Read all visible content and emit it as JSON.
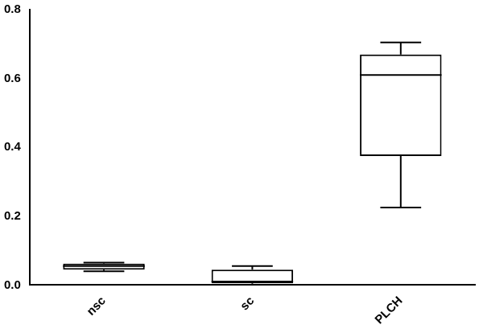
{
  "chart_data": {
    "type": "box",
    "categories": [
      "nsc",
      "sc",
      "PLCH"
    ],
    "min": [
      0.04,
      0.0,
      0.225
    ],
    "q1": [
      0.045,
      0.005,
      0.375
    ],
    "median": [
      0.055,
      0.01,
      0.61
    ],
    "q3": [
      0.062,
      0.045,
      0.67
    ],
    "max": [
      0.065,
      0.055,
      0.705
    ],
    "color": "#000000",
    "ylim": [
      0,
      0.8
    ],
    "yticks": [
      {
        "value": 0,
        "label": "0.0"
      },
      0.2,
      0.4,
      0.6,
      0.8
    ],
    "grid": false
  }
}
